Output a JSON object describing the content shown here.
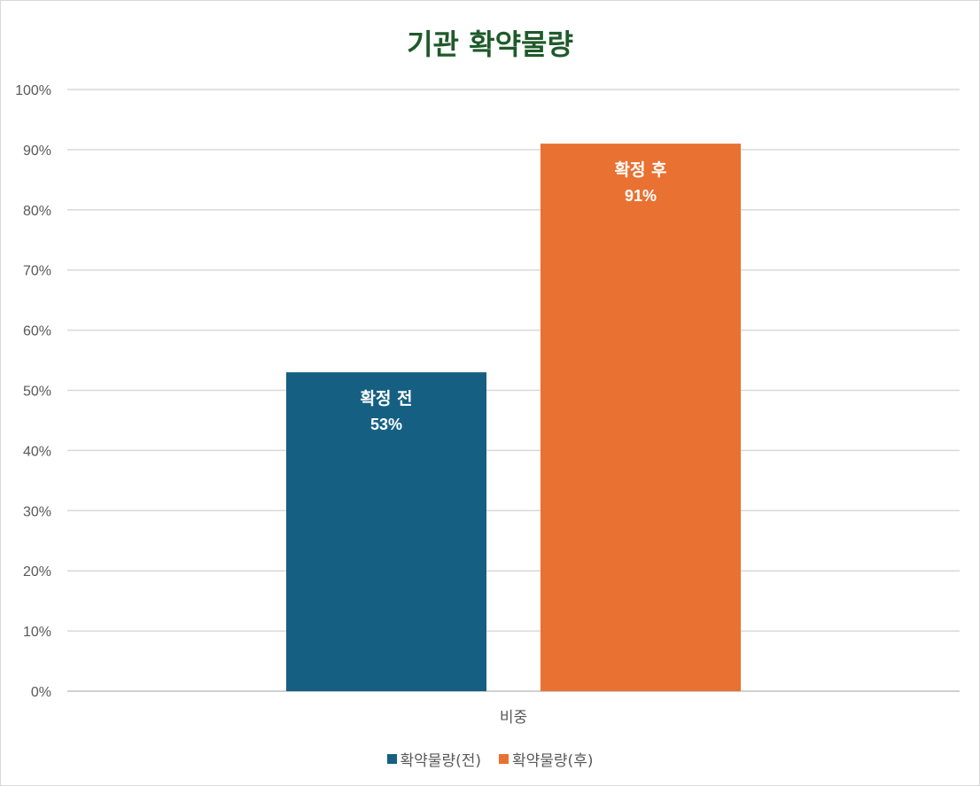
{
  "chart_data": {
    "type": "bar",
    "title": "기관 확약물량",
    "categories": [
      "비중"
    ],
    "series": [
      {
        "name": "확약물량(전)",
        "values": [
          0.53
        ],
        "data_label_name": "확정 전",
        "data_label_value": "53%",
        "color": "#156082"
      },
      {
        "name": "확약물량(후)",
        "values": [
          0.91
        ],
        "data_label_name": "확정 후",
        "data_label_value": "91%",
        "color": "#e97132"
      }
    ],
    "ylim": [
      0,
      1
    ],
    "yticks": [
      "0%",
      "10%",
      "20%",
      "30%",
      "40%",
      "50%",
      "60%",
      "70%",
      "80%",
      "90%",
      "100%"
    ],
    "grid": true,
    "legend_position": "bottom"
  }
}
